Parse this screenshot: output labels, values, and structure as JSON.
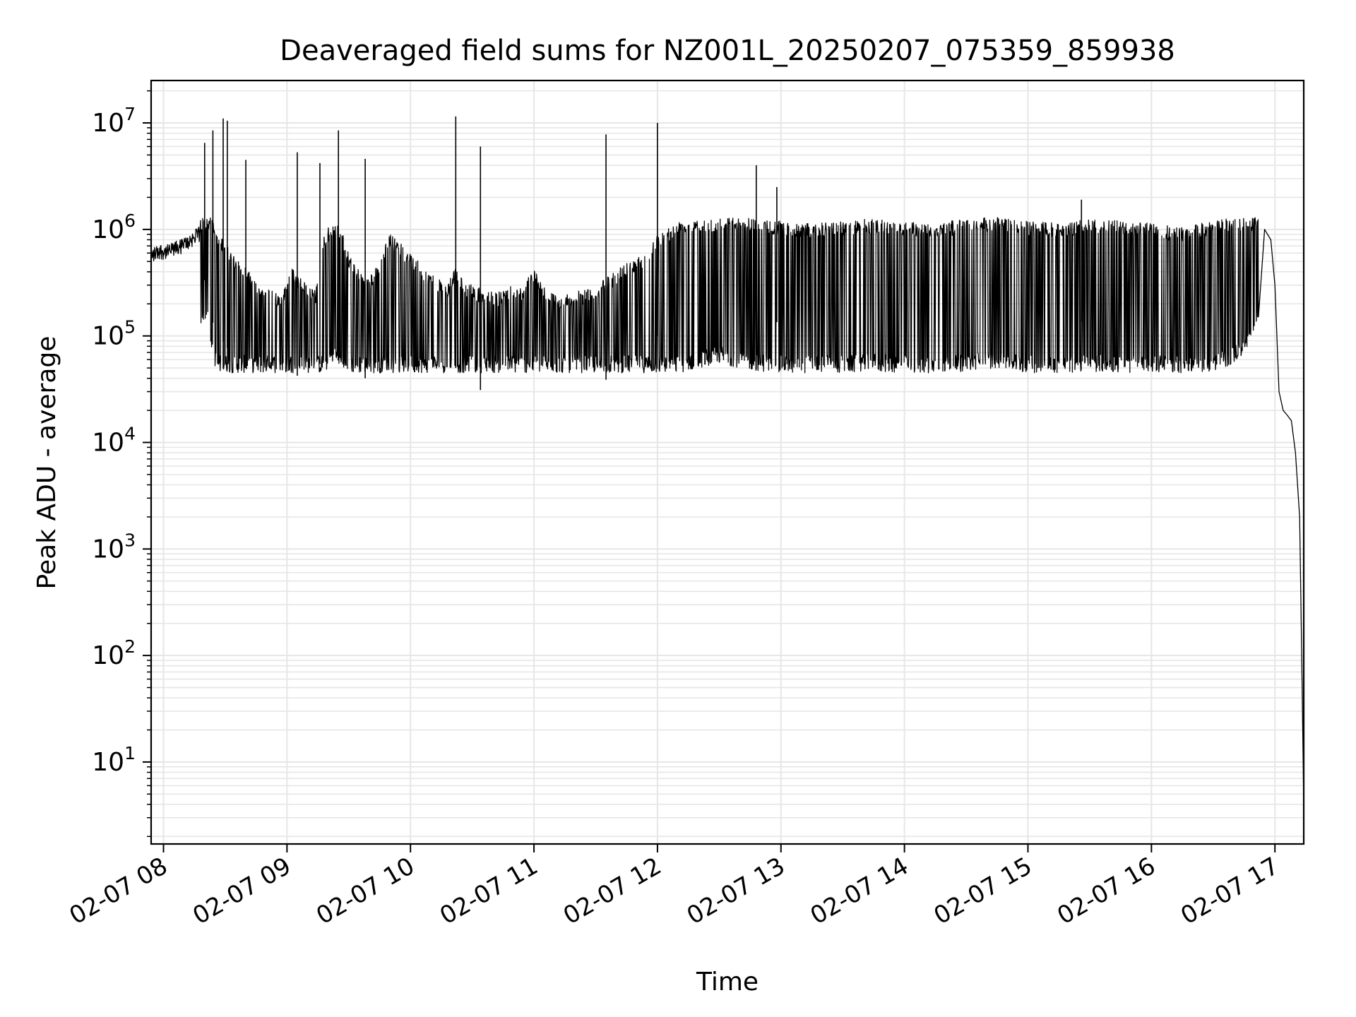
{
  "chart_data": {
    "type": "line",
    "title": "Deaveraged field sums for NZ001L_20250207_075359_859938",
    "xlabel": "Time",
    "ylabel": "Peak ADU - average",
    "x_scale": "time",
    "y_scale": "log",
    "xlim": [
      "2025-02-07 07:54",
      "2025-02-07 17:14"
    ],
    "ylim": [
      1.7,
      25000000
    ],
    "x_ticks": [
      "2025-02-07 08:00",
      "2025-02-07 09:00",
      "2025-02-07 10:00",
      "2025-02-07 11:00",
      "2025-02-07 12:00",
      "2025-02-07 13:00",
      "2025-02-07 14:00",
      "2025-02-07 15:00",
      "2025-02-07 16:00",
      "2025-02-07 17:00"
    ],
    "x_tick_labels": [
      "02-07 08",
      "02-07 09",
      "02-07 10",
      "02-07 11",
      "02-07 12",
      "02-07 13",
      "02-07 14",
      "02-07 15",
      "02-07 16",
      "02-07 17"
    ],
    "y_ticks": [
      10,
      100,
      1000,
      10000,
      100000,
      1000000,
      10000000
    ],
    "y_tick_labels": [
      {
        "base": "10",
        "exp": "1"
      },
      {
        "base": "10",
        "exp": "2"
      },
      {
        "base": "10",
        "exp": "3"
      },
      {
        "base": "10",
        "exp": "4"
      },
      {
        "base": "10",
        "exp": "5"
      },
      {
        "base": "10",
        "exp": "6"
      },
      {
        "base": "10",
        "exp": "7"
      }
    ],
    "grid": true,
    "line_color": "#000000",
    "grid_color": "#e6e6e6",
    "series": [
      {
        "x": [
          "2025-02-07 07:54",
          "2025-02-07 07:58",
          "2025-02-07 08:02",
          "2025-02-07 08:06",
          "2025-02-07 08:10",
          "2025-02-07 08:14",
          "2025-02-07 08:18",
          "2025-02-07 08:20",
          "2025-02-07 08:22",
          "2025-02-07 08:24",
          "2025-02-07 08:27",
          "2025-02-07 08:30",
          "2025-02-07 08:33",
          "2025-02-07 08:37",
          "2025-02-07 08:40",
          "2025-02-07 08:44",
          "2025-02-07 08:48",
          "2025-02-07 08:52",
          "2025-02-07 08:57",
          "2025-02-07 09:02",
          "2025-02-07 09:06",
          "2025-02-07 09:10",
          "2025-02-07 09:14",
          "2025-02-07 09:18",
          "2025-02-07 09:22",
          "2025-02-07 09:26",
          "2025-02-07 09:30",
          "2025-02-07 09:34",
          "2025-02-07 09:38",
          "2025-02-07 09:42",
          "2025-02-07 09:46",
          "2025-02-07 09:50",
          "2025-02-07 09:55",
          "2025-02-07 10:00",
          "2025-02-07 10:06",
          "2025-02-07 10:12",
          "2025-02-07 10:18",
          "2025-02-07 10:22",
          "2025-02-07 10:26",
          "2025-02-07 10:30",
          "2025-02-07 10:36",
          "2025-02-07 10:42",
          "2025-02-07 10:48",
          "2025-02-07 10:54",
          "2025-02-07 11:00",
          "2025-02-07 11:06",
          "2025-02-07 11:12",
          "2025-02-07 11:18",
          "2025-02-07 11:24",
          "2025-02-07 11:30",
          "2025-02-07 11:36",
          "2025-02-07 11:42",
          "2025-02-07 11:48",
          "2025-02-07 11:54",
          "2025-02-07 12:00",
          "2025-02-07 12:10",
          "2025-02-07 12:20",
          "2025-02-07 12:30",
          "2025-02-07 12:40",
          "2025-02-07 12:50",
          "2025-02-07 13:00",
          "2025-02-07 13:15",
          "2025-02-07 13:30",
          "2025-02-07 13:45",
          "2025-02-07 14:00",
          "2025-02-07 14:15",
          "2025-02-07 14:30",
          "2025-02-07 14:45",
          "2025-02-07 15:00",
          "2025-02-07 15:15",
          "2025-02-07 15:30",
          "2025-02-07 15:45",
          "2025-02-07 16:00",
          "2025-02-07 16:15",
          "2025-02-07 16:30",
          "2025-02-07 16:40",
          "2025-02-07 16:48",
          "2025-02-07 16:52",
          "2025-02-07 16:55",
          "2025-02-07 16:58",
          "2025-02-07 17:00",
          "2025-02-07 17:02",
          "2025-02-07 17:04",
          "2025-02-07 17:06",
          "2025-02-07 17:08",
          "2025-02-07 17:10",
          "2025-02-07 17:12",
          "2025-02-07 17:13",
          "2025-02-07 17:14"
        ],
        "y": [
          550000,
          620000,
          600000,
          650000,
          700000,
          800000,
          900000,
          1000000,
          900000,
          400000,
          300000,
          250000,
          200000,
          180000,
          150000,
          120000,
          100000,
          90000,
          80000,
          150000,
          120000,
          100000,
          90000,
          300000,
          400000,
          350000,
          200000,
          150000,
          120000,
          130000,
          200000,
          300000,
          250000,
          200000,
          150000,
          120000,
          100000,
          150000,
          110000,
          100000,
          90000,
          85000,
          100000,
          95000,
          150000,
          90000,
          80000,
          85000,
          90000,
          100000,
          120000,
          150000,
          180000,
          200000,
          300000,
          400000,
          450000,
          500000,
          450000,
          420000,
          400000,
          380000,
          400000,
          420000,
          400000,
          380000,
          420000,
          450000,
          400000,
          380000,
          420000,
          400000,
          380000,
          350000,
          400000,
          500000,
          700000,
          1300000,
          1000000,
          800000,
          300000,
          30000,
          20000,
          18000,
          16000,
          8000,
          2000,
          100,
          4
        ]
      }
    ],
    "spikes": [
      {
        "x": "2025-02-07 08:20",
        "y": 6500000
      },
      {
        "x": "2025-02-07 08:24",
        "y": 8500000
      },
      {
        "x": "2025-02-07 08:29",
        "y": 11000000
      },
      {
        "x": "2025-02-07 08:31",
        "y": 10500000
      },
      {
        "x": "2025-02-07 08:40",
        "y": 4500000
      },
      {
        "x": "2025-02-07 09:05",
        "y": 5300000
      },
      {
        "x": "2025-02-07 09:16",
        "y": 4200000
      },
      {
        "x": "2025-02-07 09:25",
        "y": 8500000
      },
      {
        "x": "2025-02-07 09:38",
        "y": 4600000
      },
      {
        "x": "2025-02-07 10:22",
        "y": 11500000
      },
      {
        "x": "2025-02-07 10:34",
        "y": 6000000
      },
      {
        "x": "2025-02-07 11:35",
        "y": 7800000
      },
      {
        "x": "2025-02-07 12:00",
        "y": 10000000
      },
      {
        "x": "2025-02-07 12:48",
        "y": 4000000
      },
      {
        "x": "2025-02-07 12:58",
        "y": 2500000
      },
      {
        "x": "2025-02-07 15:26",
        "y": 1900000
      }
    ]
  }
}
